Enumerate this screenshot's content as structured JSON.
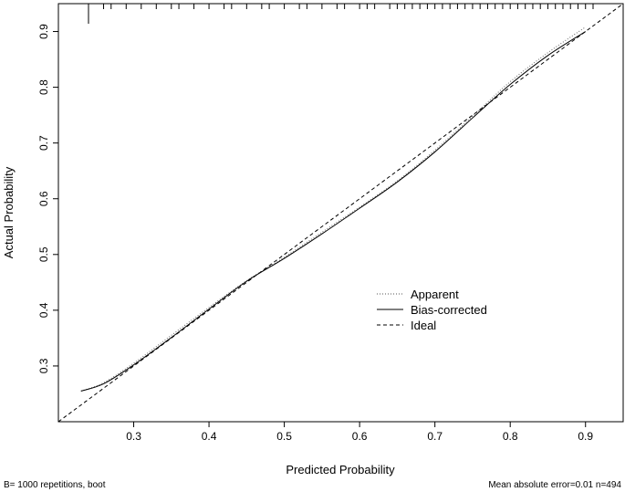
{
  "chart_data": {
    "type": "line",
    "xlabel": "Predicted Probability",
    "ylabel": "Actual Probability",
    "xlim": [
      0.2,
      0.95
    ],
    "ylim": [
      0.2,
      0.95
    ],
    "x_ticks": [
      0.3,
      0.4,
      0.5,
      0.6,
      0.7,
      0.8,
      0.9
    ],
    "y_ticks": [
      0.3,
      0.4,
      0.5,
      0.6,
      0.7,
      0.8,
      0.9
    ],
    "x_tick_labels": [
      "0.3",
      "0.4",
      "0.5",
      "0.6",
      "0.7",
      "0.8",
      "0.9"
    ],
    "y_tick_labels": [
      "0.3",
      "0.4",
      "0.5",
      "0.6",
      "0.7",
      "0.8",
      "0.9"
    ],
    "grid": false,
    "legend_position": "right",
    "series": [
      {
        "name": "Apparent",
        "style": "dotted",
        "x": [
          0.23,
          0.26,
          0.3,
          0.35,
          0.4,
          0.45,
          0.5,
          0.55,
          0.6,
          0.65,
          0.7,
          0.75,
          0.8,
          0.85,
          0.9
        ],
        "y": [
          0.255,
          0.27,
          0.305,
          0.355,
          0.405,
          0.453,
          0.495,
          0.54,
          0.585,
          0.632,
          0.687,
          0.748,
          0.81,
          0.862,
          0.908
        ]
      },
      {
        "name": "Bias-corrected",
        "style": "solid",
        "x": [
          0.23,
          0.26,
          0.3,
          0.35,
          0.4,
          0.45,
          0.5,
          0.55,
          0.6,
          0.65,
          0.7,
          0.75,
          0.8,
          0.85,
          0.9
        ],
        "y": [
          0.255,
          0.268,
          0.302,
          0.351,
          0.402,
          0.452,
          0.493,
          0.537,
          0.583,
          0.63,
          0.684,
          0.745,
          0.805,
          0.857,
          0.9
        ]
      },
      {
        "name": "Ideal",
        "style": "dashed",
        "x": [
          0.2,
          0.95
        ],
        "y": [
          0.2,
          0.95
        ]
      }
    ],
    "rug_x": [
      0.24,
      0.26,
      0.27,
      0.29,
      0.31,
      0.33,
      0.35,
      0.36,
      0.38,
      0.4,
      0.42,
      0.43,
      0.45,
      0.47,
      0.48,
      0.5,
      0.52,
      0.53,
      0.55,
      0.57,
      0.58,
      0.6,
      0.61,
      0.62,
      0.64,
      0.65,
      0.66,
      0.67,
      0.68,
      0.69,
      0.7,
      0.71,
      0.72,
      0.73,
      0.74,
      0.75,
      0.76,
      0.77,
      0.78,
      0.79,
      0.8,
      0.81,
      0.82,
      0.83,
      0.84,
      0.85,
      0.86,
      0.87,
      0.88,
      0.89,
      0.9,
      0.91
    ],
    "rug_tall_x": [
      0.24
    ],
    "footnote_left": "B= 1000 repetitions, boot",
    "footnote_right": "Mean absolute error=0.01 n=494"
  }
}
